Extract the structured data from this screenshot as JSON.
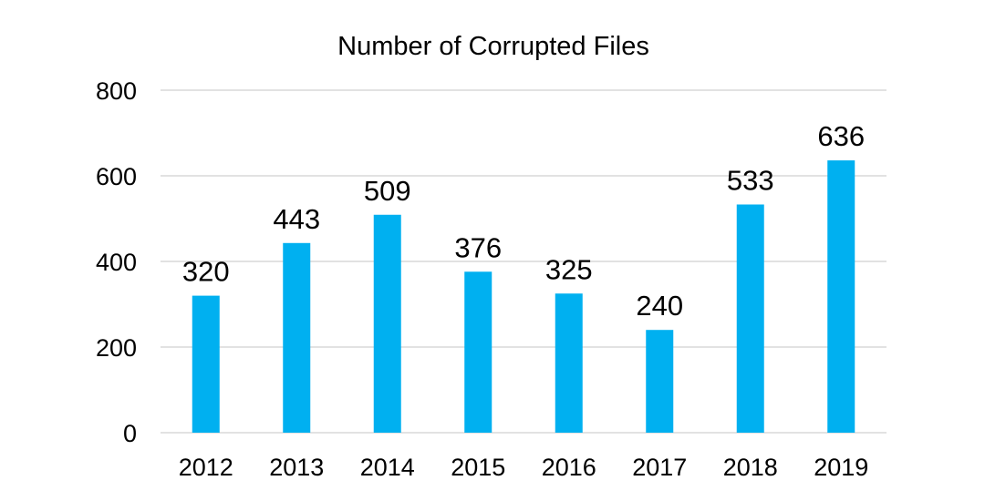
{
  "chart_data": {
    "type": "bar",
    "title": "Number of Corrupted Files",
    "xlabel": "",
    "ylabel": "",
    "categories": [
      "2012",
      "2013",
      "2014",
      "2015",
      "2016",
      "2017",
      "2018",
      "2019"
    ],
    "values": [
      320,
      443,
      509,
      376,
      325,
      240,
      533,
      636
    ],
    "ylim": [
      0,
      800
    ],
    "yticks": [
      0,
      200,
      400,
      600,
      800
    ],
    "grid": true,
    "legend": "none",
    "colors": {
      "bar": "#00b0f0",
      "grid": "#d9d9d9",
      "text": "#000000"
    }
  }
}
